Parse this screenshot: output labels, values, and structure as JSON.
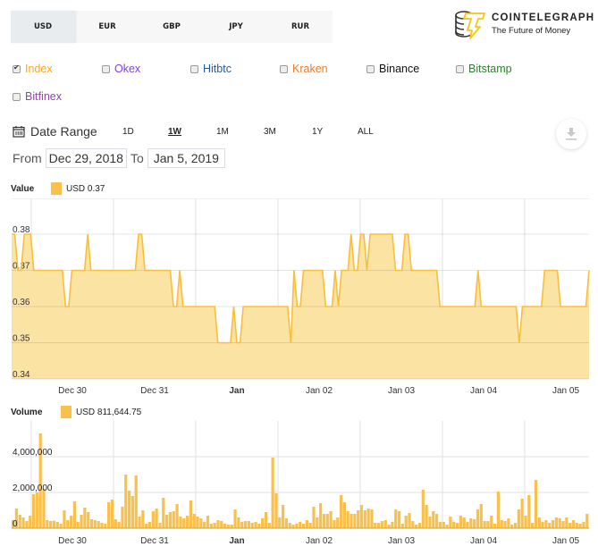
{
  "currency_tabs": [
    {
      "label": "USD",
      "active": true
    },
    {
      "label": "EUR",
      "active": false
    },
    {
      "label": "GBP",
      "active": false
    },
    {
      "label": "JPY",
      "active": false
    },
    {
      "label": "RUR",
      "active": false
    }
  ],
  "logo": {
    "title": "COINTELEGRAPH",
    "subtitle": "The Future of Money"
  },
  "exchanges": [
    {
      "label": "Index",
      "checked": true,
      "color": "#f9a825"
    },
    {
      "label": "Okex",
      "checked": false,
      "color": "#7b3fe4"
    },
    {
      "label": "Hitbtc",
      "checked": false,
      "color": "#2b5a8a"
    },
    {
      "label": "Kraken",
      "checked": false,
      "color": "#ef7a2a"
    },
    {
      "label": "Binance",
      "checked": false,
      "color": "#111111"
    },
    {
      "label": "Bitstamp",
      "checked": false,
      "color": "#2e7d32"
    },
    {
      "label": "Bitfinex",
      "checked": false,
      "color": "#8e44ad"
    }
  ],
  "date_range": {
    "label": "Date Range",
    "ranges": [
      {
        "label": "1D",
        "active": false
      },
      {
        "label": "1W",
        "active": true
      },
      {
        "label": "1M",
        "active": false
      },
      {
        "label": "3M",
        "active": false
      },
      {
        "label": "1Y",
        "active": false
      },
      {
        "label": "ALL",
        "active": false
      }
    ],
    "from_label": "From",
    "from_value": "Dec 29, 2018",
    "to_label": "To",
    "to_value": "Jan 5, 2019"
  },
  "value_chart": {
    "title": "Value",
    "legend": "USD 0.37"
  },
  "volume_chart": {
    "title": "Volume",
    "legend": "USD 811,644.75"
  },
  "colors": {
    "accent": "#f9c04c",
    "fill": "#fbe3a4",
    "line": "#f9bf3b",
    "grid": "#e2e2e2"
  },
  "chart_data": [
    {
      "type": "area",
      "title": "Value",
      "legend": [
        "USD 0.37"
      ],
      "xlabel": "",
      "ylabel": "",
      "x_ticks": [
        "Dec 30",
        "Dec 31",
        "Jan",
        "Jan 02",
        "Jan 03",
        "Jan 04",
        "Jan 05"
      ],
      "y_ticks": [
        0.34,
        0.35,
        0.36,
        0.37,
        0.38
      ],
      "ylim": [
        0.34,
        0.38
      ],
      "grid": true,
      "series": [
        {
          "name": "USD",
          "values": [
            0.38,
            0.38,
            0.37,
            0.37,
            0.38,
            0.38,
            0.38,
            0.37,
            0.37,
            0.37,
            0.37,
            0.37,
            0.37,
            0.37,
            0.37,
            0.37,
            0.37,
            0.36,
            0.36,
            0.37,
            0.37,
            0.37,
            0.37,
            0.37,
            0.38,
            0.37,
            0.37,
            0.37,
            0.37,
            0.37,
            0.37,
            0.37,
            0.37,
            0.37,
            0.37,
            0.37,
            0.37,
            0.37,
            0.37,
            0.37,
            0.38,
            0.38,
            0.37,
            0.37,
            0.37,
            0.37,
            0.37,
            0.37,
            0.37,
            0.37,
            0.37,
            0.36,
            0.36,
            0.37,
            0.36,
            0.36,
            0.36,
            0.36,
            0.36,
            0.36,
            0.36,
            0.36,
            0.36,
            0.36,
            0.36,
            0.35,
            0.35,
            0.35,
            0.35,
            0.35,
            0.36,
            0.35,
            0.35,
            0.36,
            0.36,
            0.36,
            0.36,
            0.36,
            0.36,
            0.36,
            0.36,
            0.36,
            0.36,
            0.36,
            0.36,
            0.36,
            0.36,
            0.36,
            0.35,
            0.37,
            0.36,
            0.36,
            0.37,
            0.37,
            0.37,
            0.37,
            0.37,
            0.37,
            0.37,
            0.36,
            0.36,
            0.36,
            0.37,
            0.36,
            0.37,
            0.37,
            0.37,
            0.38,
            0.37,
            0.37,
            0.38,
            0.38,
            0.37,
            0.38,
            0.38,
            0.38,
            0.38,
            0.38,
            0.38,
            0.38,
            0.38,
            0.37,
            0.37,
            0.37,
            0.38,
            0.38,
            0.37,
            0.37,
            0.37,
            0.37,
            0.37,
            0.37,
            0.37,
            0.37,
            0.37,
            0.36,
            0.36,
            0.36,
            0.36,
            0.36,
            0.36,
            0.36,
            0.36,
            0.36,
            0.36,
            0.36,
            0.36,
            0.37,
            0.36,
            0.36,
            0.36,
            0.36,
            0.36,
            0.36,
            0.36,
            0.36,
            0.36,
            0.36,
            0.36,
            0.36,
            0.35,
            0.36,
            0.36,
            0.36,
            0.36,
            0.36,
            0.36,
            0.36,
            0.37,
            0.37,
            0.37,
            0.37,
            0.37,
            0.36,
            0.36,
            0.36,
            0.36,
            0.36,
            0.36,
            0.36,
            0.36,
            0.36,
            0.37
          ]
        }
      ]
    },
    {
      "type": "bar",
      "title": "Volume",
      "legend": [
        "USD 811,644.75"
      ],
      "xlabel": "",
      "ylabel": "",
      "x_ticks": [
        "Dec 30",
        "Dec 31",
        "Jan",
        "Jan 02",
        "Jan 03",
        "Jan 04",
        "Jan 05"
      ],
      "y_ticks": [
        0,
        2000000,
        4000000
      ],
      "ylim": [
        0,
        5500000
      ],
      "grid": true,
      "series": [
        {
          "name": "USD",
          "values": [
            450000,
            1100000,
            750000,
            600000,
            400000,
            700000,
            1900000,
            2000000,
            5300000,
            2200000,
            450000,
            400000,
            420000,
            350000,
            250000,
            1000000,
            450000,
            700000,
            1500000,
            350000,
            750000,
            1150000,
            900000,
            500000,
            450000,
            400000,
            300000,
            250000,
            1450000,
            1600000,
            500000,
            350000,
            1200000,
            3000000,
            2100000,
            1800000,
            2950000,
            650000,
            1000000,
            250000,
            350000,
            950000,
            1100000,
            300000,
            1700000,
            750000,
            900000,
            950000,
            1350000,
            650000,
            550000,
            700000,
            1550000,
            800000,
            650000,
            550000,
            350000,
            700000,
            250000,
            300000,
            450000,
            400000,
            250000,
            200000,
            200000,
            1050000,
            600000,
            350000,
            400000,
            400000,
            300000,
            350000,
            250000,
            550000,
            900000,
            300000,
            3950000,
            1950000,
            600000,
            1300000,
            550000,
            300000,
            200000,
            250000,
            350000,
            250000,
            450000,
            300000,
            1200000,
            600000,
            1400000,
            800000,
            800000,
            950000,
            450000,
            600000,
            1850000,
            1450000,
            950000,
            800000,
            800000,
            1000000,
            1300000,
            1000000,
            1100000,
            1050000,
            300000,
            300000,
            400000,
            450000,
            200000,
            350000,
            1050000,
            950000,
            250000,
            700000,
            850000,
            400000,
            200000,
            300000,
            2150000,
            1300000,
            650000,
            950000,
            800000,
            350000,
            350000,
            200000,
            650000,
            350000,
            300000,
            700000,
            600000,
            350000,
            550000,
            500000,
            1050000,
            1350000,
            400000,
            400000,
            700000,
            250000,
            2050000,
            450000,
            400000,
            550000,
            200000,
            300000,
            1050000,
            1650000,
            700000,
            1850000,
            300000,
            2700000,
            600000,
            350000,
            450000,
            300000,
            450000,
            600000,
            550000,
            400000,
            600000,
            300000,
            450000,
            300000,
            250000,
            350000,
            800000
          ]
        }
      ]
    }
  ]
}
